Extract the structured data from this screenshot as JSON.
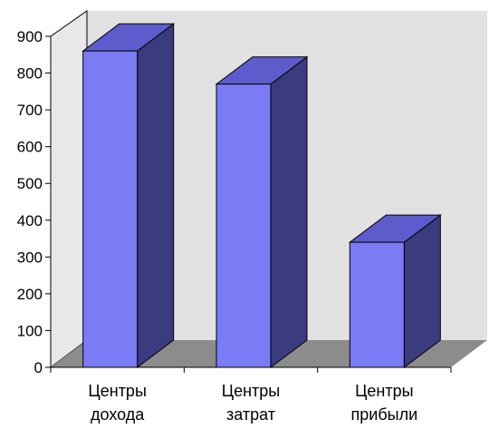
{
  "chart_data": {
    "type": "bar",
    "categories": [
      [
        "Центры",
        "дохода"
      ],
      [
        "Центры",
        "затрат"
      ],
      [
        "Центры",
        "прибыли"
      ]
    ],
    "values": [
      860,
      770,
      340
    ],
    "ylim": [
      0,
      900
    ],
    "yticks": [
      0,
      100,
      200,
      300,
      400,
      500,
      600,
      700,
      800,
      900
    ],
    "grid": false,
    "legend": "none",
    "style": "3d-column",
    "colors": {
      "bar_front": "#7b7bf5",
      "bar_top": "#5c5ccc",
      "bar_side": "#3b3b80",
      "back_wall": "#e1e1e1",
      "floor": "#8c8c8c",
      "axis": "#000000"
    }
  }
}
